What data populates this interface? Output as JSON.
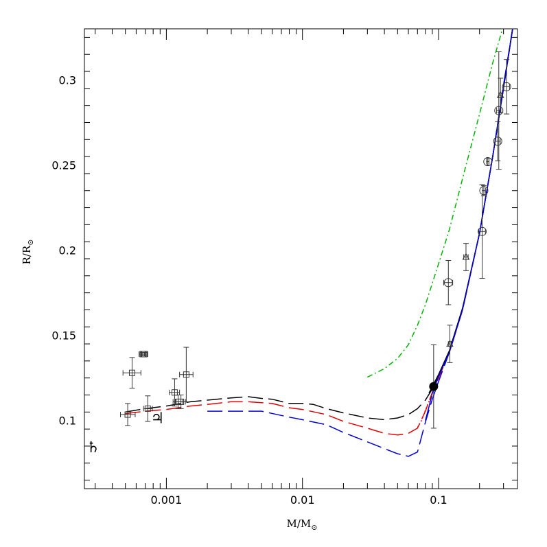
{
  "chart_data": {
    "type": "scatter",
    "title": "",
    "xlabel": "M/M",
    "xlabel_subscript": "⊙",
    "ylabel": "R/R",
    "ylabel_subscript": "⊙",
    "x_scale": "log",
    "xlim": [
      0.00025,
      0.38
    ],
    "ylim": [
      0.06,
      0.33
    ],
    "x_ticks": [
      {
        "value": 0.001,
        "label": "0.001"
      },
      {
        "value": 0.01,
        "label": "0.01"
      },
      {
        "value": 0.1,
        "label": "0.1"
      }
    ],
    "y_ticks": [
      {
        "value": 0.1,
        "label": "0.1"
      },
      {
        "value": 0.15,
        "label": "0.15"
      },
      {
        "value": 0.2,
        "label": "0.2"
      },
      {
        "value": 0.25,
        "label": "0.25"
      },
      {
        "value": 0.3,
        "label": "0.3"
      }
    ],
    "grid": false,
    "legend": "none",
    "planets": [
      {
        "symbol": "♃",
        "x": 0.00086,
        "y": 0.1018
      },
      {
        "symbol": "♄",
        "x": 0.00029,
        "y": 0.0845
      }
    ],
    "series": [
      {
        "color": "#000000",
        "dash": "long",
        "points": [
          [
            0.0005,
            0.105
          ],
          [
            0.0007,
            0.107
          ],
          [
            0.001,
            0.1085
          ],
          [
            0.0015,
            0.111
          ],
          [
            0.002,
            0.112
          ],
          [
            0.003,
            0.1133
          ],
          [
            0.004,
            0.114
          ],
          [
            0.005,
            0.113
          ],
          [
            0.006,
            0.1125
          ],
          [
            0.008,
            0.11
          ],
          [
            0.01,
            0.11
          ],
          [
            0.012,
            0.1095
          ],
          [
            0.015,
            0.107
          ],
          [
            0.02,
            0.1045
          ],
          [
            0.03,
            0.1015
          ],
          [
            0.04,
            0.1005
          ],
          [
            0.05,
            0.1015
          ],
          [
            0.06,
            0.1035
          ],
          [
            0.07,
            0.107
          ],
          [
            0.08,
            0.112
          ],
          [
            0.09,
            0.1185
          ],
          [
            0.1,
            0.126
          ],
          [
            0.12,
            0.14
          ],
          [
            0.15,
            0.165
          ],
          [
            0.2,
            0.21
          ],
          [
            0.25,
            0.255
          ],
          [
            0.3,
            0.295
          ],
          [
            0.35,
            0.33
          ]
        ]
      },
      {
        "color": "#e00000",
        "dash": "long",
        "points": [
          [
            0.0005,
            0.104
          ],
          [
            0.0007,
            0.1055
          ],
          [
            0.001,
            0.1065
          ],
          [
            0.0015,
            0.1085
          ],
          [
            0.002,
            0.1095
          ],
          [
            0.003,
            0.111
          ],
          [
            0.004,
            0.111
          ],
          [
            0.005,
            0.1105
          ],
          [
            0.006,
            0.11
          ],
          [
            0.008,
            0.1075
          ],
          [
            0.01,
            0.1065
          ],
          [
            0.015,
            0.1035
          ],
          [
            0.02,
            0.0995
          ],
          [
            0.03,
            0.0955
          ],
          [
            0.04,
            0.0925
          ],
          [
            0.05,
            0.0915
          ],
          [
            0.06,
            0.0925
          ],
          [
            0.07,
            0.0955
          ],
          [
            0.08,
            0.1055
          ],
          [
            0.09,
            0.1165
          ],
          [
            0.1,
            0.125
          ],
          [
            0.12,
            0.14
          ],
          [
            0.15,
            0.165
          ],
          [
            0.2,
            0.21
          ],
          [
            0.25,
            0.255
          ],
          [
            0.3,
            0.295
          ],
          [
            0.35,
            0.33
          ]
        ]
      },
      {
        "color": "#0000d0",
        "dash": "long",
        "points": [
          [
            0.002,
            0.1055
          ],
          [
            0.003,
            0.1055
          ],
          [
            0.005,
            0.1055
          ],
          [
            0.008,
            0.102
          ],
          [
            0.01,
            0.1005
          ],
          [
            0.015,
            0.0975
          ],
          [
            0.02,
            0.093
          ],
          [
            0.03,
            0.0875
          ],
          [
            0.04,
            0.0835
          ],
          [
            0.05,
            0.0805
          ],
          [
            0.06,
            0.079
          ],
          [
            0.07,
            0.0815
          ],
          [
            0.08,
            0.099
          ],
          [
            0.09,
            0.1125
          ],
          [
            0.1,
            0.123
          ],
          [
            0.12,
            0.14
          ],
          [
            0.15,
            0.165
          ],
          [
            0.2,
            0.21
          ],
          [
            0.25,
            0.255
          ],
          [
            0.3,
            0.297
          ],
          [
            0.35,
            0.33
          ]
        ]
      },
      {
        "color": "#000000",
        "dash": "solid",
        "points": [
          [
            0.085,
            0.116
          ],
          [
            0.09,
            0.12
          ],
          [
            0.1,
            0.127
          ],
          [
            0.12,
            0.141
          ],
          [
            0.15,
            0.166
          ],
          [
            0.2,
            0.21
          ],
          [
            0.25,
            0.255
          ],
          [
            0.3,
            0.295
          ],
          [
            0.35,
            0.33
          ]
        ]
      },
      {
        "color": "#0000d0",
        "dash": "solid",
        "points": [
          [
            0.08,
            0.1
          ],
          [
            0.085,
            0.108
          ],
          [
            0.09,
            0.116
          ],
          [
            0.1,
            0.126
          ],
          [
            0.12,
            0.14
          ],
          [
            0.15,
            0.165
          ],
          [
            0.2,
            0.21
          ],
          [
            0.25,
            0.255
          ],
          [
            0.3,
            0.296
          ],
          [
            0.35,
            0.33
          ]
        ]
      },
      {
        "color": "#e00000",
        "dash": "dotted",
        "points": [
          [
            0.07,
            0.096
          ],
          [
            0.075,
            0.1
          ],
          [
            0.08,
            0.106
          ],
          [
            0.09,
            0.116
          ]
        ]
      },
      {
        "color": "#00b400",
        "dash": "dashdot",
        "points": [
          [
            0.03,
            0.1255
          ],
          [
            0.04,
            0.1305
          ],
          [
            0.05,
            0.1365
          ],
          [
            0.06,
            0.1445
          ],
          [
            0.07,
            0.156
          ],
          [
            0.08,
            0.168
          ],
          [
            0.1,
            0.192
          ],
          [
            0.12,
            0.212
          ],
          [
            0.15,
            0.242
          ],
          [
            0.2,
            0.28
          ],
          [
            0.25,
            0.31
          ],
          [
            0.3,
            0.332
          ]
        ]
      }
    ],
    "data_points": [
      {
        "marker": "square",
        "x": 0.00052,
        "y": 0.1035,
        "xerr": [
          6e-05,
          7e-05
        ],
        "yerr": 0.0065
      },
      {
        "marker": "square",
        "x": 0.00056,
        "y": 0.128,
        "xerr": [
          8e-05,
          9e-05
        ],
        "yerr": 0.009
      },
      {
        "marker": "square",
        "x": 0.00067,
        "y": 0.139,
        "xerr": [
          4e-05,
          4e-05
        ],
        "yerr": 0.001
      },
      {
        "marker": "square",
        "x": 0.00069,
        "y": 0.139,
        "xerr": [
          4e-05,
          4e-05
        ],
        "yerr": 0.001
      },
      {
        "marker": "square",
        "x": 0.00073,
        "y": 0.107,
        "xerr": [
          5e-05,
          6e-05
        ],
        "yerr": 0.0075
      },
      {
        "marker": "square",
        "x": 0.00115,
        "y": 0.1165,
        "xerr": [
          0.0001,
          0.0001
        ],
        "yerr": 0.008
      },
      {
        "marker": "square",
        "x": 0.00122,
        "y": 0.111,
        "xerr": [
          0.0001,
          0.0001
        ],
        "yerr": 0.004
      },
      {
        "marker": "square",
        "x": 0.00128,
        "y": 0.111,
        "xerr": [
          0.0001,
          0.0001
        ],
        "yerr": 0.004
      },
      {
        "marker": "square",
        "x": 0.0014,
        "y": 0.127,
        "xerr": [
          0.00015,
          0.00017
        ],
        "yerr": 0.016
      },
      {
        "marker": "filled-circle",
        "x": 0.092,
        "y": 0.12,
        "xerr": [
          0.004,
          0.004
        ],
        "yerr": 0.0245
      },
      {
        "marker": "triangle",
        "x": 0.121,
        "y": 0.145,
        "xerr": [
          0.003,
          0.003
        ],
        "yerr": 0.011
      },
      {
        "marker": "circle",
        "x": 0.118,
        "y": 0.181,
        "xerr": [
          0.009,
          0.009
        ],
        "yerr": 0.013
      },
      {
        "marker": "triangle",
        "x": 0.159,
        "y": 0.196,
        "xerr": [
          0.006,
          0.006
        ],
        "yerr": 0.008
      },
      {
        "marker": "circle",
        "x": 0.209,
        "y": 0.211,
        "xerr": [
          0.012,
          0.012
        ],
        "yerr": 0.0275
      },
      {
        "marker": "circle",
        "x": 0.215,
        "y": 0.235,
        "xerr": [
          0.006,
          0.006
        ],
        "yerr": 0.003
      },
      {
        "marker": "circle",
        "x": 0.23,
        "y": 0.252,
        "xerr": [
          0.005,
          0.005
        ],
        "yerr": 0.002
      },
      {
        "marker": "circle",
        "x": 0.272,
        "y": 0.264,
        "xerr": [
          0.012,
          0.012
        ],
        "yerr": 0.0115
      },
      {
        "marker": "circle",
        "x": 0.277,
        "y": 0.282,
        "xerr": [
          0.01,
          0.01
        ],
        "yerr": 0.0345
      },
      {
        "marker": "triangle",
        "x": 0.285,
        "y": 0.291,
        "xerr": [
          0.008,
          0.008
        ],
        "yerr": 0.01
      },
      {
        "marker": "circle",
        "x": 0.316,
        "y": 0.296,
        "xerr": [
          0.016,
          0.016
        ],
        "yerr": 0.016
      }
    ]
  }
}
